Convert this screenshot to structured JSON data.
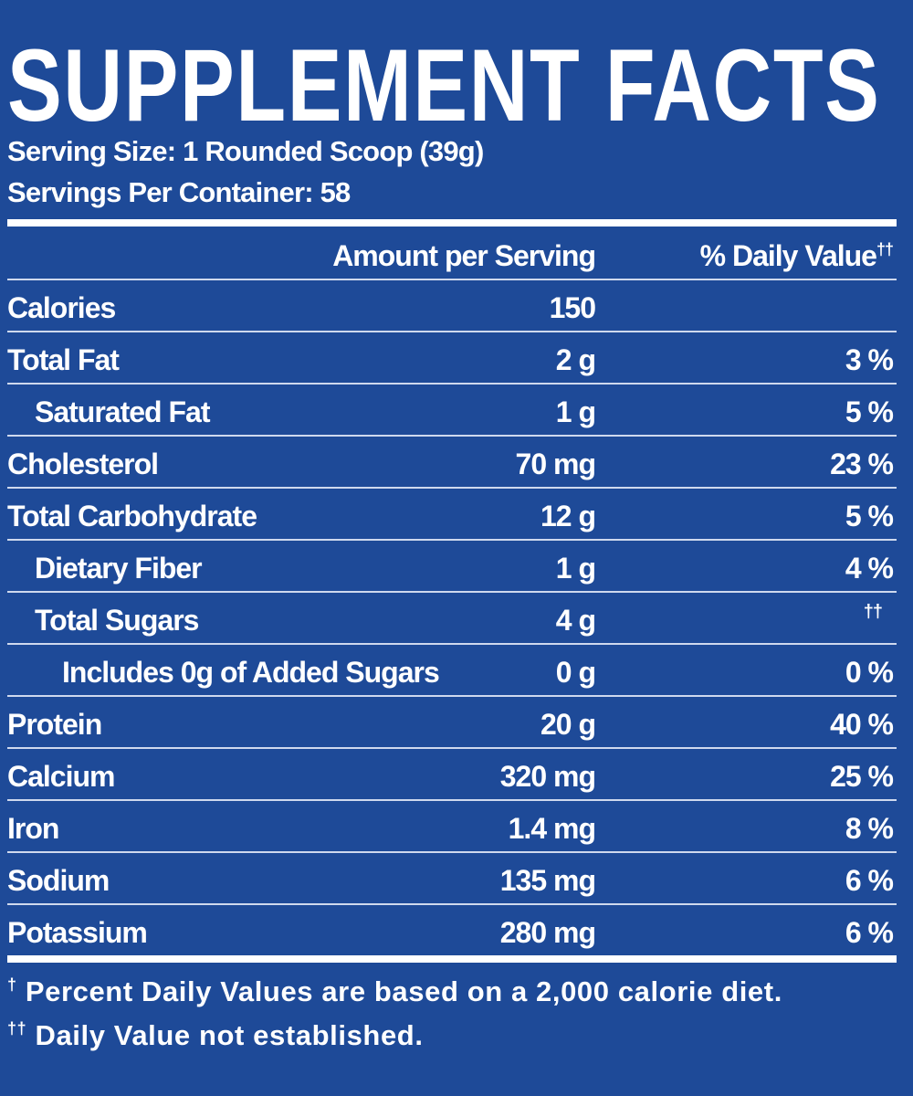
{
  "title": "SUPPLEMENT FACTS",
  "serving_size": "Serving Size: 1 Rounded Scoop (39g)",
  "servings_per_container": "Servings Per Container: 58",
  "table": {
    "header": {
      "amount": "Amount per Serving",
      "daily_value": "% Daily Value",
      "daily_value_mark": "††"
    },
    "rows": [
      {
        "name": "Calories",
        "amount": "150"
      },
      {
        "name": "Total Fat",
        "amount": "2 g",
        "daily_value": "3 %"
      },
      {
        "name": "Saturated Fat",
        "amount": "1 g",
        "daily_value": "5 %"
      },
      {
        "name": "Cholesterol",
        "amount": "70 mg",
        "daily_value": "23 %"
      },
      {
        "name": "Total Carbohydrate",
        "amount": "12 g",
        "daily_value": "5 %"
      },
      {
        "name": "Dietary Fiber",
        "amount": "1 g",
        "daily_value": "4 %"
      },
      {
        "name": "Total Sugars",
        "amount": "4 g",
        "daily_value": "††"
      },
      {
        "name": "Includes 0g of Added Sugars",
        "amount": "0 g",
        "daily_value": "0 %"
      },
      {
        "name": "Protein",
        "amount": "20 g",
        "daily_value": "40 %"
      },
      {
        "name": "Calcium",
        "amount": "320 mg",
        "daily_value": "25 %"
      },
      {
        "name": "Iron",
        "amount": "1.4 mg",
        "daily_value": "8 %"
      },
      {
        "name": "Sodium",
        "amount": "135 mg",
        "daily_value": "6 %"
      },
      {
        "name": "Potassium",
        "amount": "280 mg",
        "daily_value": "6 %"
      }
    ]
  },
  "footnotes": [
    {
      "mark": "†",
      "text": "Percent Daily Values are based on a 2,000 calorie diet."
    },
    {
      "mark": "††",
      "text": "Daily Value not established."
    }
  ]
}
